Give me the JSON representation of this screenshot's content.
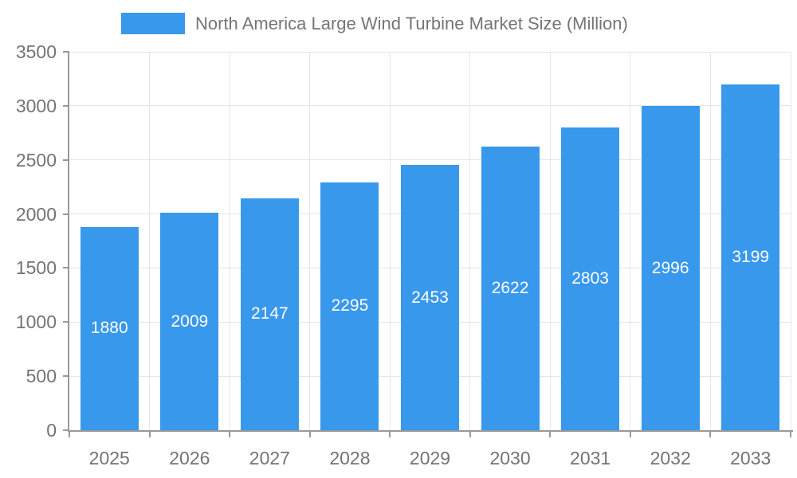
{
  "chart_data": {
    "type": "bar",
    "title": "North America Large Wind Turbine Market Size (Million)",
    "legend": {
      "position": "top-center",
      "entries": [
        "North America Large Wind Turbine Market Size (Million)"
      ]
    },
    "categories": [
      "2025",
      "2026",
      "2027",
      "2028",
      "2029",
      "2030",
      "2031",
      "2032",
      "2033"
    ],
    "series": [
      {
        "name": "North America Large Wind Turbine Market Size (Million)",
        "values": [
          1880,
          2009,
          2147,
          2295,
          2453,
          2622,
          2803,
          2996,
          3199
        ]
      }
    ],
    "value_labels": {
      "shown": true,
      "placement": "inside-center"
    },
    "xlabel": "",
    "ylabel": "",
    "ylim": [
      0,
      3500
    ],
    "y_ticks": [
      0,
      500,
      1000,
      1500,
      2000,
      2500,
      3000,
      3500
    ],
    "grid": {
      "horizontal": true,
      "vertical": true
    },
    "colors": {
      "bar": "#3898EC",
      "grid": "#E5E5E5",
      "axis": "#999999",
      "tick_text": "#737373",
      "title_text": "#757575",
      "value_text": "#FFFFFF",
      "background": "#FFFFFF"
    }
  }
}
